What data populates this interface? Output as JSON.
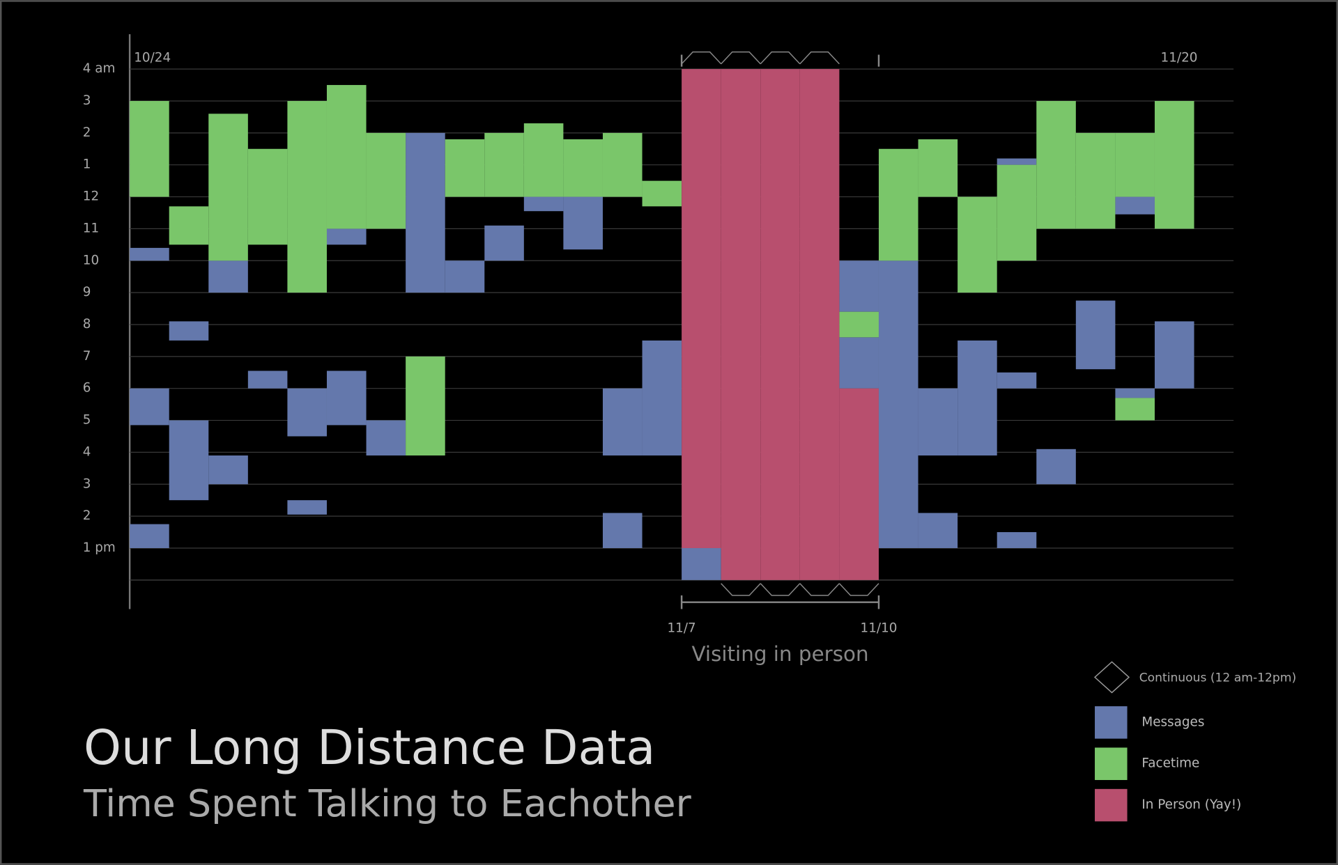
{
  "chart_data": {
    "type": "timeline-blocks",
    "title": "Our Long Distance Data",
    "subtitle": "Time Spent Talking to Eachother",
    "annotation": {
      "text": "Visiting in person",
      "span": [
        14,
        19
      ]
    },
    "continuous_label": "Continuous (12 am-12pm)",
    "xlim": [
      0,
      28
    ],
    "xticks": [
      {
        "value": 0,
        "label": "10/24"
      },
      {
        "value": 14,
        "label": "11/7"
      },
      {
        "value": 19,
        "label": "11/10"
      },
      {
        "value": 27,
        "label": "11/20"
      }
    ],
    "ylim": [
      0,
      16
    ],
    "yticks": [
      {
        "value": 1,
        "label": "1 pm"
      },
      2,
      3,
      4,
      5,
      6,
      7,
      8,
      9,
      10,
      11,
      12,
      {
        "value": 13,
        "label": "1"
      },
      {
        "value": 14,
        "label": "2"
      },
      {
        "value": 15,
        "label": "3"
      },
      {
        "value": 16,
        "label": "4 am"
      }
    ],
    "grid": true,
    "series": [
      {
        "name": "Messages",
        "color": "#6478ac",
        "x": [
          0,
          0,
          0,
          1,
          1,
          2,
          2,
          3,
          4,
          4,
          5,
          5,
          6,
          7,
          8,
          9,
          10,
          11,
          12,
          12,
          13,
          14,
          18,
          18,
          19,
          20,
          20,
          21,
          22,
          22,
          22,
          23,
          24,
          25,
          25,
          26
        ],
        "low": [
          10,
          4.85,
          1,
          7.5,
          2.5,
          9,
          3,
          6,
          4.5,
          2.05,
          10.5,
          4.85,
          3.9,
          9,
          9,
          10,
          11.55,
          10.35,
          3.9,
          1,
          3.9,
          0,
          8.4,
          6,
          1,
          3.9,
          1,
          3.9,
          13,
          6,
          1,
          3,
          6.6,
          11.45,
          5.7,
          6
        ],
        "high": [
          10.4,
          6,
          1.75,
          8.1,
          5,
          10,
          3.9,
          6.55,
          6,
          2.5,
          11,
          6.55,
          5,
          14,
          10,
          11.1,
          12,
          12,
          6,
          2.1,
          7.5,
          1,
          10,
          7.6,
          10,
          6,
          2.1,
          7.5,
          13.2,
          6.5,
          1.5,
          4.1,
          8.75,
          12,
          6,
          8.1
        ]
      },
      {
        "name": "Facetime",
        "color": "#7ac66a",
        "x": [
          0,
          1,
          2,
          3,
          4,
          5,
          6,
          7,
          8,
          9,
          10,
          11,
          12,
          13,
          18,
          19,
          20,
          21,
          22,
          23,
          24,
          25,
          25,
          26
        ],
        "low": [
          12,
          10.5,
          10,
          10.5,
          9,
          11,
          11,
          3.9,
          12,
          12,
          12,
          12,
          12,
          11.7,
          7.6,
          10,
          12,
          9,
          10,
          11,
          11,
          12,
          5,
          11
        ],
        "high": [
          15,
          11.7,
          14.6,
          13.5,
          15,
          15.5,
          14,
          7,
          13.8,
          14,
          14.3,
          13.8,
          14,
          12.5,
          8.4,
          13.5,
          13.8,
          12,
          13,
          15,
          14,
          14,
          5.7,
          15
        ]
      },
      {
        "name": "In Person (Yay!)",
        "color": "#b84f6e",
        "x": [
          14,
          15,
          16,
          17,
          18
        ],
        "low": [
          1,
          0,
          0,
          0,
          0
        ],
        "high": [
          16,
          16,
          16,
          16,
          6
        ]
      }
    ]
  }
}
